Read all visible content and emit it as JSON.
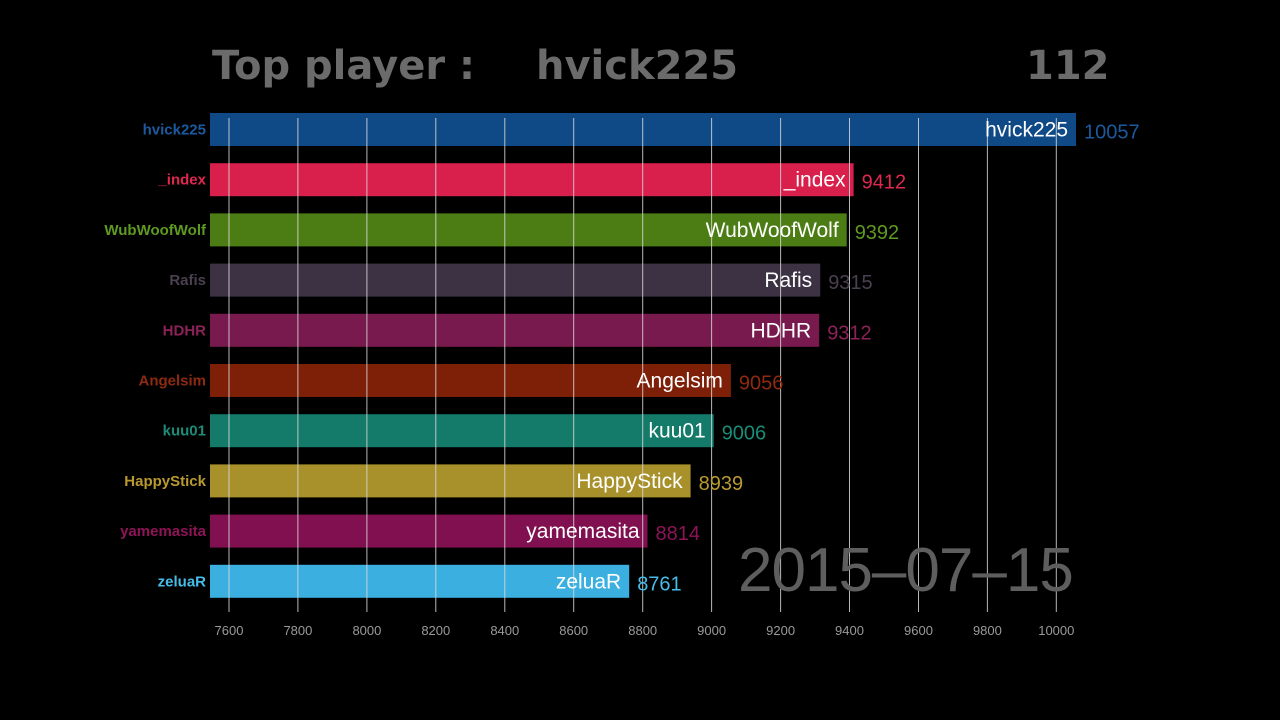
{
  "header": {
    "label": "Top player :",
    "top_player": "hvick225",
    "count": "112"
  },
  "date": "2015–07–15",
  "chart_data": {
    "type": "bar",
    "orientation": "horizontal",
    "title": "",
    "xlabel": "",
    "ylabel": "",
    "xlim": [
      7545,
      10100
    ],
    "x_ticks": [
      7600,
      7800,
      8000,
      8200,
      8400,
      8600,
      8800,
      9000,
      9200,
      9400,
      9600,
      9800,
      10000
    ],
    "grid": true,
    "categories": [
      "hvick225",
      "_index",
      "WubWoofWolf",
      "Rafis",
      "HDHR",
      "Angelsim",
      "kuu01",
      "HappyStick",
      "yamemasita",
      "zeluaR"
    ],
    "values": [
      10057,
      9412,
      9392,
      9315,
      9312,
      9056,
      9006,
      8939,
      8814,
      8761
    ],
    "colors": [
      "#0f4a86",
      "#d91f4b",
      "#4c7d14",
      "#3c3243",
      "#781a4e",
      "#7e2008",
      "#147a6a",
      "#a8902a",
      "#80104f",
      "#3bb0e0"
    ],
    "label_colors": [
      "#1b5a9e",
      "#e0284f",
      "#5e9a22",
      "#4a4050",
      "#8c2258",
      "#8e2a10",
      "#1a8c78",
      "#b89a30",
      "#8e1458",
      "#45bde8"
    ]
  }
}
